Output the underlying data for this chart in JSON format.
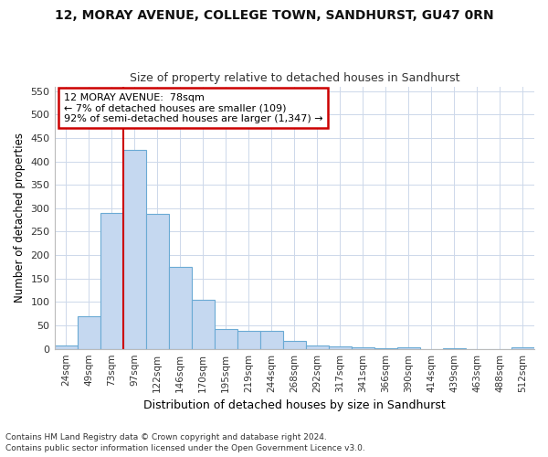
{
  "title": "12, MORAY AVENUE, COLLEGE TOWN, SANDHURST, GU47 0RN",
  "subtitle": "Size of property relative to detached houses in Sandhurst",
  "xlabel": "Distribution of detached houses by size in Sandhurst",
  "ylabel": "Number of detached properties",
  "categories": [
    "24sqm",
    "49sqm",
    "73sqm",
    "97sqm",
    "122sqm",
    "146sqm",
    "170sqm",
    "195sqm",
    "219sqm",
    "244sqm",
    "268sqm",
    "292sqm",
    "317sqm",
    "341sqm",
    "366sqm",
    "390sqm",
    "414sqm",
    "439sqm",
    "463sqm",
    "488sqm",
    "512sqm"
  ],
  "values": [
    8,
    70,
    290,
    425,
    288,
    175,
    105,
    43,
    38,
    38,
    16,
    8,
    5,
    3,
    2,
    3,
    0,
    2,
    0,
    0,
    3
  ],
  "bar_color": "#c5d8f0",
  "bar_edge_color": "#6aaad4",
  "bar_width": 1.0,
  "red_line_x": 2.5,
  "annotation_line1": "12 MORAY AVENUE:  78sqm",
  "annotation_line2": "← 7% of detached houses are smaller (109)",
  "annotation_line3": "92% of semi-detached houses are larger (1,347) →",
  "annotation_box_color": "#ffffff",
  "annotation_box_edge": "#cc0000",
  "ylim": [
    0,
    560
  ],
  "yticks": [
    0,
    50,
    100,
    150,
    200,
    250,
    300,
    350,
    400,
    450,
    500,
    550
  ],
  "footnote1": "Contains HM Land Registry data © Crown copyright and database right 2024.",
  "footnote2": "Contains public sector information licensed under the Open Government Licence v3.0.",
  "background_color": "#ffffff",
  "grid_color": "#cdd8ea"
}
